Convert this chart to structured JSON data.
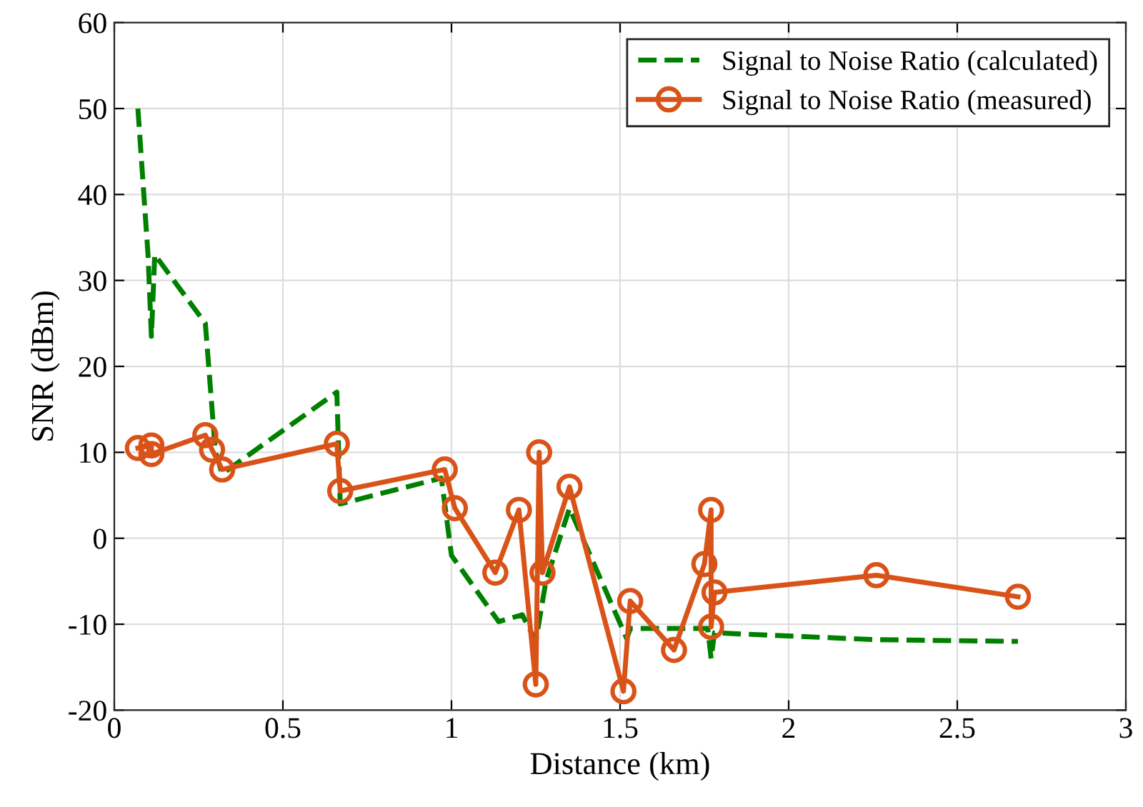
{
  "chart_data": {
    "type": "line",
    "xlabel": "Distance (km)",
    "ylabel": "SNR (dBm)",
    "xlim": [
      0,
      3
    ],
    "ylim": [
      -20,
      60
    ],
    "xticks": [
      0,
      0.5,
      1,
      1.5,
      2,
      2.5,
      3
    ],
    "yticks": [
      -20,
      -10,
      0,
      10,
      20,
      30,
      40,
      50,
      60
    ],
    "grid": true,
    "legend": "top right",
    "series": [
      {
        "name": "Signal to Noise Ratio (calculated)",
        "color": "#008000",
        "line_style": "dashed",
        "marker": "none",
        "x": [
          0.07,
          0.1,
          0.11,
          0.12,
          0.27,
          0.3,
          0.32,
          0.66,
          0.67,
          0.97,
          1.0,
          1.14,
          1.21,
          1.25,
          1.28,
          1.35,
          1.52,
          1.53,
          1.76,
          1.77,
          1.78,
          2.26,
          2.68
        ],
        "values": [
          50,
          33,
          23.5,
          33,
          25,
          10,
          7.5,
          17,
          4,
          7,
          -2,
          -9.7,
          -8.9,
          -12,
          -5,
          3.5,
          -11.7,
          -10.5,
          -10.5,
          -14,
          -11,
          -11.8,
          -12
        ]
      },
      {
        "name": "Signal to Noise Ratio (measured)",
        "color": "#d95319",
        "line_style": "solid",
        "marker": "circle",
        "x": [
          0.07,
          0.11,
          0.11,
          0.27,
          0.29,
          0.32,
          0.66,
          0.67,
          0.98,
          1.01,
          1.13,
          1.2,
          1.25,
          1.26,
          1.27,
          1.35,
          1.51,
          1.53,
          1.66,
          1.75,
          1.77,
          1.77,
          1.78,
          2.26,
          2.68
        ],
        "values": [
          10.5,
          10.8,
          9.8,
          12,
          10.3,
          8,
          11,
          5.5,
          8,
          3.5,
          -4,
          3.3,
          -17,
          10,
          -4,
          6,
          -17.8,
          -7.3,
          -13,
          -3,
          3.3,
          -10.3,
          -6.3,
          -4.3,
          -6.8
        ]
      }
    ]
  }
}
